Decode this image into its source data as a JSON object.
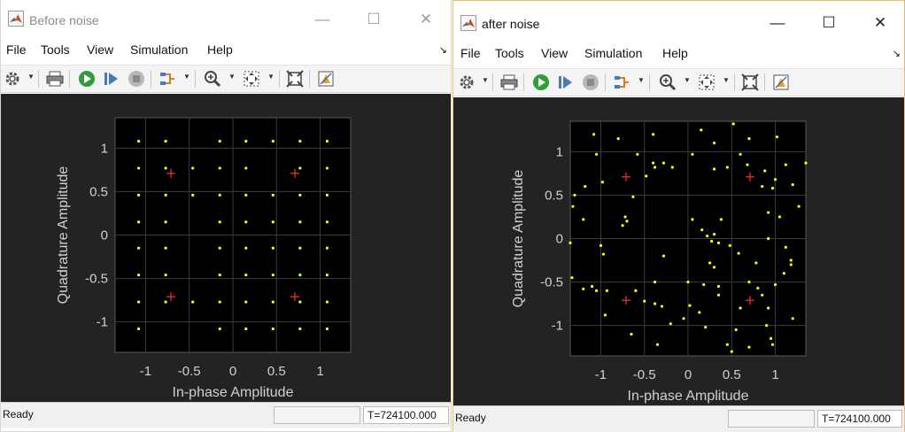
{
  "windows": [
    {
      "id": "before",
      "title": "Before noise",
      "menu": [
        "File",
        "Tools",
        "View",
        "Simulation",
        "Help"
      ],
      "status": {
        "text": "Ready",
        "time": "T=724100.000"
      }
    },
    {
      "id": "after",
      "title": "after noise",
      "menu": [
        "File",
        "Tools",
        "View",
        "Simulation",
        "Help"
      ],
      "status": {
        "text": "Ready",
        "time": "T=724100.000"
      }
    }
  ],
  "titlebar_glyphs": {
    "minimize": "—",
    "maximize": "☐",
    "close": "✕"
  },
  "colors": {
    "plot_bg": "#232323",
    "axes_bg": "#000000",
    "point": "#ffff00",
    "reference": "#ff3030",
    "text": "#d0d0d0"
  },
  "chart_data": [
    {
      "type": "scatter",
      "title": "",
      "xlabel": "In-phase Amplitude",
      "ylabel": "Quadrature Amplitude",
      "xlim": [
        -1.35,
        1.35
      ],
      "ylim": [
        -1.35,
        1.35
      ],
      "xticks": [
        -1,
        -0.5,
        0,
        0.5,
        1
      ],
      "yticks": [
        -1,
        -0.5,
        0,
        0.5,
        1
      ],
      "xtick_labels": [
        "-1",
        "-0.5",
        "0",
        "0.5",
        "1"
      ],
      "ytick_labels": [
        "-1",
        "-0.5",
        "0",
        "0.5",
        "1"
      ],
      "grid": true,
      "series": [
        {
          "color": "#ffff00",
          "marker": "dot",
          "points": [
            [
              -1.08,
              1.08
            ],
            [
              -0.77,
              1.08
            ],
            [
              -0.15,
              1.08
            ],
            [
              0.15,
              1.08
            ],
            [
              0.46,
              1.08
            ],
            [
              0.77,
              1.08
            ],
            [
              1.08,
              1.08
            ],
            [
              -1.08,
              0.77
            ],
            [
              -0.77,
              0.77
            ],
            [
              -0.46,
              0.77
            ],
            [
              -0.15,
              0.77
            ],
            [
              0.15,
              0.77
            ],
            [
              0.77,
              0.77
            ],
            [
              1.08,
              0.77
            ],
            [
              -1.08,
              0.46
            ],
            [
              -0.77,
              0.46
            ],
            [
              -0.46,
              0.46
            ],
            [
              -0.15,
              0.46
            ],
            [
              0.15,
              0.46
            ],
            [
              0.46,
              0.46
            ],
            [
              0.77,
              0.46
            ],
            [
              1.08,
              0.46
            ],
            [
              -1.08,
              0.15
            ],
            [
              -0.77,
              0.15
            ],
            [
              -0.15,
              0.15
            ],
            [
              0.15,
              0.15
            ],
            [
              0.46,
              0.15
            ],
            [
              0.77,
              0.15
            ],
            [
              1.08,
              0.15
            ],
            [
              -1.08,
              -0.15
            ],
            [
              -0.77,
              -0.15
            ],
            [
              -0.15,
              -0.15
            ],
            [
              0.15,
              -0.15
            ],
            [
              0.46,
              -0.15
            ],
            [
              0.77,
              -0.15
            ],
            [
              1.08,
              -0.15
            ],
            [
              -1.08,
              -0.46
            ],
            [
              -0.77,
              -0.46
            ],
            [
              -0.15,
              -0.46
            ],
            [
              0.15,
              -0.46
            ],
            [
              0.46,
              -0.46
            ],
            [
              0.77,
              -0.46
            ],
            [
              1.08,
              -0.46
            ],
            [
              -1.08,
              -0.77
            ],
            [
              -0.77,
              -0.77
            ],
            [
              -0.46,
              -0.77
            ],
            [
              -0.15,
              -0.77
            ],
            [
              0.15,
              -0.77
            ],
            [
              0.46,
              -0.77
            ],
            [
              0.77,
              -0.77
            ],
            [
              1.08,
              -0.77
            ],
            [
              -1.08,
              -1.08
            ],
            [
              -0.15,
              -1.08
            ],
            [
              0.15,
              -1.08
            ],
            [
              0.46,
              -1.08
            ],
            [
              0.77,
              -1.08
            ],
            [
              1.08,
              -1.08
            ]
          ]
        },
        {
          "color": "#ff3030",
          "marker": "plus",
          "points": [
            [
              -0.71,
              0.71
            ],
            [
              0.71,
              0.71
            ],
            [
              -0.71,
              -0.71
            ],
            [
              0.71,
              -0.71
            ]
          ]
        }
      ]
    },
    {
      "type": "scatter",
      "title": "",
      "xlabel": "In-phase Amplitude",
      "ylabel": "Quadrature Amplitude",
      "xlim": [
        -1.35,
        1.35
      ],
      "ylim": [
        -1.35,
        1.35
      ],
      "xticks": [
        -1,
        -0.5,
        0,
        0.5,
        1
      ],
      "yticks": [
        -1,
        -0.5,
        0,
        0.5,
        1
      ],
      "xtick_labels": [
        "-1",
        "-0.5",
        "0",
        "0.5",
        "1"
      ],
      "ytick_labels": [
        "-1",
        "-0.5",
        "0",
        "0.5",
        "1"
      ],
      "grid": true,
      "series": [
        {
          "color": "#ffff00",
          "marker": "dot",
          "points": [
            [
              -1.08,
              1.2
            ],
            [
              -0.8,
              1.15
            ],
            [
              -0.4,
              1.2
            ],
            [
              0.15,
              1.25
            ],
            [
              0.3,
              1.1
            ],
            [
              0.52,
              1.32
            ],
            [
              0.7,
              1.15
            ],
            [
              1.02,
              1.17
            ],
            [
              -1.05,
              0.97
            ],
            [
              -0.58,
              0.97
            ],
            [
              -0.4,
              0.87
            ],
            [
              -0.28,
              0.87
            ],
            [
              0.05,
              0.97
            ],
            [
              0.3,
              0.8
            ],
            [
              0.45,
              0.82
            ],
            [
              0.68,
              0.85
            ],
            [
              0.88,
              0.78
            ],
            [
              1.12,
              0.85
            ],
            [
              1.35,
              0.87
            ],
            [
              -1.3,
              0.5
            ],
            [
              -1.18,
              0.6
            ],
            [
              -0.98,
              0.65
            ],
            [
              -0.63,
              0.48
            ],
            [
              -0.48,
              0.72
            ],
            [
              -0.38,
              0.82
            ],
            [
              -0.18,
              0.82
            ],
            [
              0.6,
              0.97
            ],
            [
              0.85,
              0.6
            ],
            [
              0.97,
              0.58
            ],
            [
              1.0,
              0.68
            ],
            [
              1.2,
              0.62
            ],
            [
              -1.32,
              0.37
            ],
            [
              -1.2,
              0.22
            ],
            [
              -0.72,
              0.25
            ],
            [
              -0.7,
              0.2
            ],
            [
              -0.75,
              0.15
            ],
            [
              0.05,
              0.22
            ],
            [
              0.16,
              0.1
            ],
            [
              0.3,
              0.05
            ],
            [
              0.38,
              0.22
            ],
            [
              0.92,
              0.3
            ],
            [
              1.05,
              0.25
            ],
            [
              1.27,
              0.37
            ],
            [
              -1.35,
              -0.05
            ],
            [
              -1.0,
              -0.08
            ],
            [
              -0.97,
              -0.18
            ],
            [
              0.22,
              0.03
            ],
            [
              0.27,
              -0.03
            ],
            [
              0.35,
              -0.05
            ],
            [
              0.48,
              -0.08
            ],
            [
              0.92,
              0.0
            ],
            [
              1.12,
              -0.1
            ],
            [
              1.18,
              -0.25
            ],
            [
              -1.33,
              -0.45
            ],
            [
              -1.1,
              -0.55
            ],
            [
              -1.05,
              -0.6
            ],
            [
              -0.28,
              -0.2
            ],
            [
              0.25,
              -0.28
            ],
            [
              0.3,
              -0.33
            ],
            [
              0.58,
              -0.17
            ],
            [
              0.78,
              -0.28
            ],
            [
              1.1,
              -0.4
            ],
            [
              1.18,
              -0.3
            ],
            [
              -1.2,
              -0.58
            ],
            [
              -0.93,
              -0.6
            ],
            [
              -0.6,
              -0.6
            ],
            [
              -0.38,
              -0.5
            ],
            [
              0.0,
              -0.5
            ],
            [
              0.18,
              -0.53
            ],
            [
              0.35,
              -0.55
            ],
            [
              0.7,
              -0.5
            ],
            [
              0.8,
              -0.57
            ],
            [
              1.0,
              -0.53
            ],
            [
              -0.5,
              -0.72
            ],
            [
              -0.38,
              -0.75
            ],
            [
              -0.3,
              -0.78
            ],
            [
              0.02,
              -0.77
            ],
            [
              0.13,
              -0.85
            ],
            [
              0.35,
              -0.65
            ],
            [
              0.6,
              -0.8
            ],
            [
              0.85,
              -0.65
            ],
            [
              0.92,
              -0.8
            ],
            [
              -0.95,
              -0.88
            ],
            [
              -0.65,
              -1.1
            ],
            [
              -0.2,
              -0.98
            ],
            [
              -0.05,
              -0.92
            ],
            [
              0.2,
              -1.02
            ],
            [
              0.55,
              -1.05
            ],
            [
              0.9,
              -1.0
            ],
            [
              1.2,
              -0.92
            ],
            [
              -0.35,
              -1.22
            ],
            [
              0.45,
              -1.22
            ],
            [
              0.5,
              -1.3
            ],
            [
              0.7,
              -1.25
            ],
            [
              0.95,
              -1.15
            ],
            [
              0.97,
              -1.22
            ]
          ]
        },
        {
          "color": "#ff3030",
          "marker": "plus",
          "points": [
            [
              -0.71,
              0.71
            ],
            [
              0.71,
              0.71
            ],
            [
              -0.71,
              -0.71
            ],
            [
              0.71,
              -0.71
            ]
          ]
        }
      ]
    }
  ]
}
